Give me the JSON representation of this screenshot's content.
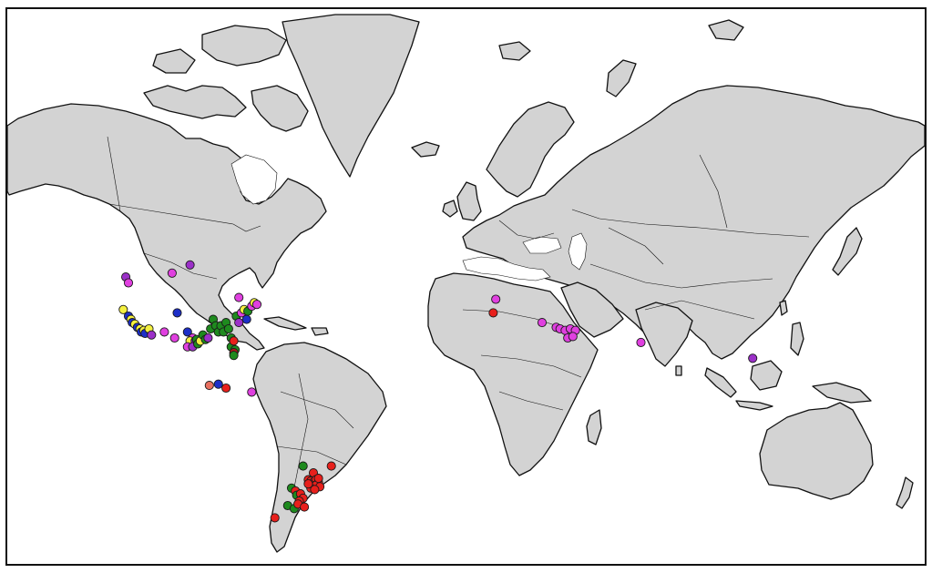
{
  "map": {
    "projection": "mercator",
    "land_fill": "#d3d3d3",
    "ocean_fill": "#ffffff",
    "coastline_color": "#111111",
    "point_colors": {
      "magenta": "#e040e0",
      "red": "#e8201c",
      "green": "#1e8a1e",
      "yellow": "#f4f040",
      "blue": "#1d2fc8",
      "purple": "#9b30c8",
      "salmon": "#e87060",
      "dark_red": "#b01818"
    },
    "points": [
      {
        "region": "north-america",
        "lon": -105,
        "lat": 50,
        "color": "magenta"
      },
      {
        "region": "north-america",
        "lon": -98,
        "lat": 52,
        "color": "purple"
      },
      {
        "region": "north-america",
        "lon": -123,
        "lat": 49,
        "color": "purple"
      },
      {
        "region": "north-america",
        "lon": -122,
        "lat": 47.5,
        "color": "magenta"
      },
      {
        "region": "north-america",
        "lon": -124,
        "lat": 40,
        "color": "yellow"
      },
      {
        "region": "north-america",
        "lon": -122,
        "lat": 38,
        "color": "blue"
      },
      {
        "region": "north-america",
        "lon": -121,
        "lat": 37,
        "color": "yellow"
      },
      {
        "region": "north-america",
        "lon": -120.5,
        "lat": 36,
        "color": "blue"
      },
      {
        "region": "north-america",
        "lon": -119.5,
        "lat": 35.5,
        "color": "yellow"
      },
      {
        "region": "north-america",
        "lon": -118.5,
        "lat": 34.5,
        "color": "blue"
      },
      {
        "region": "north-america",
        "lon": -117.5,
        "lat": 34,
        "color": "yellow"
      },
      {
        "region": "north-america",
        "lon": -117,
        "lat": 33,
        "color": "blue"
      },
      {
        "region": "north-america",
        "lon": -116,
        "lat": 33.5,
        "color": "yellow"
      },
      {
        "region": "north-america",
        "lon": -115.5,
        "lat": 32.5,
        "color": "blue"
      },
      {
        "region": "north-america",
        "lon": -114,
        "lat": 34,
        "color": "yellow"
      },
      {
        "region": "north-america",
        "lon": -113,
        "lat": 32,
        "color": "purple"
      },
      {
        "region": "north-america",
        "lon": -103,
        "lat": 39,
        "color": "blue"
      },
      {
        "region": "north-america",
        "lon": -108,
        "lat": 33,
        "color": "magenta"
      },
      {
        "region": "north-america",
        "lon": -104,
        "lat": 31,
        "color": "magenta"
      },
      {
        "region": "north-america",
        "lon": -99,
        "lat": 33,
        "color": "blue"
      },
      {
        "region": "north-america",
        "lon": -97,
        "lat": 31,
        "color": "magenta"
      },
      {
        "region": "north-america",
        "lon": -98,
        "lat": 30,
        "color": "yellow"
      },
      {
        "region": "north-america",
        "lon": -96,
        "lat": 30,
        "color": "purple"
      },
      {
        "region": "north-america",
        "lon": -99,
        "lat": 28,
        "color": "magenta"
      },
      {
        "region": "north-america",
        "lon": -97,
        "lat": 28,
        "color": "purple"
      },
      {
        "region": "north-america",
        "lon": -95.5,
        "lat": 30.5,
        "color": "green"
      },
      {
        "region": "north-america",
        "lon": -95,
        "lat": 29,
        "color": "green"
      },
      {
        "region": "north-america",
        "lon": -94,
        "lat": 30,
        "color": "yellow"
      },
      {
        "region": "north-america",
        "lon": -93,
        "lat": 32,
        "color": "green"
      },
      {
        "region": "north-america",
        "lon": -92,
        "lat": 30.5,
        "color": "green"
      },
      {
        "region": "north-america",
        "lon": -91,
        "lat": 31,
        "color": "purple"
      },
      {
        "region": "north-america",
        "lon": -90,
        "lat": 34,
        "color": "green"
      },
      {
        "region": "north-america",
        "lon": -89,
        "lat": 37,
        "color": "green"
      },
      {
        "region": "north-america",
        "lon": -88,
        "lat": 35,
        "color": "green"
      },
      {
        "region": "north-america",
        "lon": -87,
        "lat": 33,
        "color": "green"
      },
      {
        "region": "north-america",
        "lon": -86,
        "lat": 35,
        "color": "green"
      },
      {
        "region": "north-america",
        "lon": -85,
        "lat": 33,
        "color": "green"
      },
      {
        "region": "north-america",
        "lon": -84,
        "lat": 36,
        "color": "green"
      },
      {
        "region": "north-america",
        "lon": -83,
        "lat": 34,
        "color": "green"
      },
      {
        "region": "north-america",
        "lon": -82,
        "lat": 31,
        "color": "green"
      },
      {
        "region": "north-america",
        "lon": -82,
        "lat": 28,
        "color": "green"
      },
      {
        "region": "north-america",
        "lon": -81,
        "lat": 30,
        "color": "red"
      },
      {
        "region": "north-america",
        "lon": -80.5,
        "lat": 27,
        "color": "green"
      },
      {
        "region": "north-america",
        "lon": -81,
        "lat": 26,
        "color": "dark_red"
      },
      {
        "region": "north-america",
        "lon": -81,
        "lat": 25,
        "color": "green"
      },
      {
        "region": "north-america",
        "lon": -80,
        "lat": 38,
        "color": "green"
      },
      {
        "region": "north-america",
        "lon": -79,
        "lat": 36,
        "color": "purple"
      },
      {
        "region": "north-america",
        "lon": -78,
        "lat": 39,
        "color": "magenta"
      },
      {
        "region": "north-america",
        "lon": -77,
        "lat": 40,
        "color": "yellow"
      },
      {
        "region": "north-america",
        "lon": -76,
        "lat": 37,
        "color": "blue"
      },
      {
        "region": "north-america",
        "lon": -75.5,
        "lat": 39.5,
        "color": "green"
      },
      {
        "region": "north-america",
        "lon": -74,
        "lat": 41,
        "color": "magenta"
      },
      {
        "region": "north-america",
        "lon": -73,
        "lat": 42,
        "color": "yellow"
      },
      {
        "region": "north-america",
        "lon": -79,
        "lat": 43.5,
        "color": "magenta"
      },
      {
        "region": "north-america",
        "lon": -72,
        "lat": 41.5,
        "color": "magenta"
      },
      {
        "region": "central-america",
        "lon": -90.5,
        "lat": 14,
        "color": "salmon"
      },
      {
        "region": "central-america",
        "lon": -87,
        "lat": 14.5,
        "color": "blue"
      },
      {
        "region": "central-america",
        "lon": -84,
        "lat": 13,
        "color": "red"
      },
      {
        "region": "south-america",
        "lon": -74,
        "lat": 11.5,
        "color": "magenta"
      },
      {
        "region": "south-america",
        "lon": -54,
        "lat": -17,
        "color": "green"
      },
      {
        "region": "south-america",
        "lon": -50,
        "lat": -19.5,
        "color": "red"
      },
      {
        "region": "south-america",
        "lon": -43,
        "lat": -17,
        "color": "red"
      },
      {
        "region": "south-america",
        "lon": -52,
        "lat": -22,
        "color": "red"
      },
      {
        "region": "south-america",
        "lon": -51,
        "lat": -22.5,
        "color": "red"
      },
      {
        "region": "south-america",
        "lon": -50,
        "lat": -23,
        "color": "red"
      },
      {
        "region": "south-america",
        "lon": -49,
        "lat": -22,
        "color": "red"
      },
      {
        "region": "south-america",
        "lon": -48,
        "lat": -23,
        "color": "red"
      },
      {
        "region": "south-america",
        "lon": -50.5,
        "lat": -24,
        "color": "red"
      },
      {
        "region": "south-america",
        "lon": -49,
        "lat": -24,
        "color": "red"
      },
      {
        "region": "south-america",
        "lon": -47.5,
        "lat": -24.5,
        "color": "red"
      },
      {
        "region": "south-america",
        "lon": -51,
        "lat": -25,
        "color": "red"
      },
      {
        "region": "south-america",
        "lon": -49.5,
        "lat": -25.5,
        "color": "red"
      },
      {
        "region": "south-america",
        "lon": -48,
        "lat": -21.5,
        "color": "red"
      },
      {
        "region": "south-america",
        "lon": -52,
        "lat": -23.5,
        "color": "red"
      },
      {
        "region": "south-america",
        "lon": -58.5,
        "lat": -25,
        "color": "green"
      },
      {
        "region": "south-america",
        "lon": -57,
        "lat": -26,
        "color": "red"
      },
      {
        "region": "south-america",
        "lon": -56.5,
        "lat": -27.5,
        "color": "green"
      },
      {
        "region": "south-america",
        "lon": -55,
        "lat": -27,
        "color": "red"
      },
      {
        "region": "south-america",
        "lon": -54,
        "lat": -28.5,
        "color": "red"
      },
      {
        "region": "south-america",
        "lon": -55.5,
        "lat": -29.5,
        "color": "red"
      },
      {
        "region": "south-america",
        "lon": -60,
        "lat": -31,
        "color": "green"
      },
      {
        "region": "south-america",
        "lon": -57.5,
        "lat": -32,
        "color": "green"
      },
      {
        "region": "south-america",
        "lon": -56,
        "lat": -30.5,
        "color": "red"
      },
      {
        "region": "south-america",
        "lon": -53.5,
        "lat": -31.5,
        "color": "red"
      },
      {
        "region": "south-america",
        "lon": -65,
        "lat": -35,
        "color": "red"
      },
      {
        "region": "europe",
        "lon": 21,
        "lat": 43,
        "color": "magenta"
      },
      {
        "region": "europe",
        "lon": 20,
        "lat": 39,
        "color": "red"
      },
      {
        "region": "asia",
        "lon": 39,
        "lat": 36,
        "color": "magenta"
      },
      {
        "region": "asia",
        "lon": 44.5,
        "lat": 34.5,
        "color": "magenta"
      },
      {
        "region": "asia",
        "lon": 46,
        "lat": 34,
        "color": "magenta"
      },
      {
        "region": "asia",
        "lon": 48,
        "lat": 33.5,
        "color": "magenta"
      },
      {
        "region": "asia",
        "lon": 50,
        "lat": 34,
        "color": "magenta"
      },
      {
        "region": "asia",
        "lon": 52,
        "lat": 33.5,
        "color": "magenta"
      },
      {
        "region": "asia",
        "lon": 49,
        "lat": 31,
        "color": "magenta"
      },
      {
        "region": "asia",
        "lon": 51,
        "lat": 31.5,
        "color": "magenta"
      },
      {
        "region": "asia",
        "lon": 77.5,
        "lat": 29.5,
        "color": "magenta"
      },
      {
        "region": "asia",
        "lon": 121,
        "lat": 24,
        "color": "purple"
      }
    ]
  }
}
